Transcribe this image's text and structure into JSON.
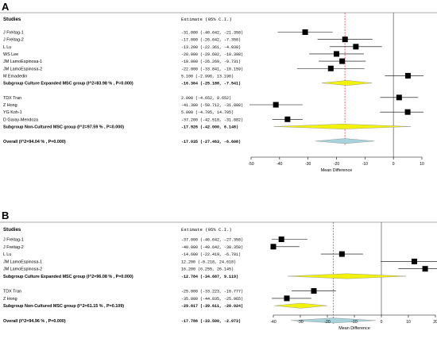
{
  "chart_data": [
    {
      "type": "forest",
      "panel_label": "A",
      "header": {
        "studies": "Studies",
        "estimate": "Estimate (95% C.I.)"
      },
      "xlabel": "Mean Difference",
      "xlim": [
        -50,
        10
      ],
      "ticks": [
        "-50",
        "-40",
        "-30",
        "-20",
        "-10",
        "0",
        "10"
      ],
      "tick_values": [
        -50,
        -40,
        -30,
        -20,
        -10,
        0,
        10
      ],
      "reference_line": -17.035,
      "rows": [
        {
          "kind": "study",
          "label": "J Freitag-1",
          "est": -31.0,
          "lo": -40.642,
          "hi": -21.358,
          "text": "-31.000 (-40.642, -21.358)"
        },
        {
          "kind": "study",
          "label": "J Freitag-2",
          "est": -17.0,
          "lo": -26.642,
          "hi": -7.358,
          "text": "-17.000 (-26.642, -7.358)"
        },
        {
          "kind": "study",
          "label": "L Lu",
          "est": -13.2,
          "lo": -22.361,
          "hi": -4.039,
          "text": "-13.200 (-22.361, -4.039)"
        },
        {
          "kind": "study",
          "label": "WS Lee",
          "est": -20.0,
          "lo": -29.602,
          "hi": -10.398,
          "text": "-20.000 (-29.602, -10.398)"
        },
        {
          "kind": "study",
          "label": "JM LamoEspinosa-1",
          "est": -18.0,
          "lo": -26.269,
          "hi": -9.731,
          "text": "-18.000 (-26.269, -9.731)"
        },
        {
          "kind": "study",
          "label": "JM LamoEspinosa-2",
          "est": -22.0,
          "lo": -33.841,
          "hi": -10.159,
          "text": "-22.000 (-33.841, -10.159)"
        },
        {
          "kind": "study",
          "label": "M Emadedin",
          "est": 5.1,
          "lo": -2.996,
          "hi": 13.196,
          "text": "5.100 (-2.996, 13.196)"
        },
        {
          "kind": "subgroup",
          "label": "Subgroup Culture Expanded MSC group (I^2=83.98 % , P=0.000)",
          "est": -16.364,
          "lo": -25.188,
          "hi": -7.541,
          "text": "-16.364 (-25.188, -7.541)"
        },
        {
          "kind": "gap"
        },
        {
          "kind": "study",
          "label": "TDX Tran",
          "est": 2.0,
          "lo": -4.652,
          "hi": 8.652,
          "text": "2.000 (-4.652, 8.652)"
        },
        {
          "kind": "study",
          "label": "Z Hong",
          "est": -41.3,
          "lo": -50.712,
          "hi": -31.888,
          "text": "-41.300 (-50.712, -31.888)"
        },
        {
          "kind": "study",
          "label": "YG Koh-1",
          "est": 5.0,
          "lo": -4.705,
          "hi": 14.705,
          "text": "5.000 (-4.705, 14.705)"
        },
        {
          "kind": "study",
          "label": "D Garay-Mendoza",
          "est": -37.2,
          "lo": -42.518,
          "hi": -31.882,
          "text": "-37.200 (-42.518, -31.882)"
        },
        {
          "kind": "subgroup",
          "label": "Subgroup Non-Cultured MSC group (I^2=97.59 % , P=0.000)",
          "est": -17.926,
          "lo": -42.0,
          "hi": 6.148,
          "text": "-17.926 (-42.000, 6.148)"
        },
        {
          "kind": "gap"
        },
        {
          "kind": "overall",
          "label": "Overall (I^2=94.04 % , P=0.000)",
          "est": -17.035,
          "lo": -27.463,
          "hi": -6.608,
          "text": "-17.035 (-27.463, -6.608)"
        }
      ]
    },
    {
      "type": "forest",
      "panel_label": "B",
      "header": {
        "studies": "Studies",
        "estimate": "Estimate (95% C.I.)"
      },
      "xlabel": "Mean Difference",
      "xlim": [
        -40,
        20
      ],
      "ticks": [
        "-40",
        "-30",
        "-20",
        "-10",
        "0",
        "10",
        "20"
      ],
      "tick_values": [
        -40,
        -30,
        -20,
        -10,
        0,
        10,
        20
      ],
      "reference_line": -17.786,
      "rows": [
        {
          "kind": "study",
          "label": "J Freitag-1",
          "est": -37.0,
          "lo": -46.642,
          "hi": -27.358,
          "text": "-37.000 (-46.642, -27.358)"
        },
        {
          "kind": "study",
          "label": "J Freitag-2",
          "est": -40.0,
          "lo": -49.642,
          "hi": -30.358,
          "text": "-40.000 (-49.642, -30.358)"
        },
        {
          "kind": "study",
          "label": "L Lu",
          "est": -14.6,
          "lo": -22.419,
          "hi": -6.781,
          "text": "-14.600 (-22.419, -6.781)"
        },
        {
          "kind": "study",
          "label": "JM LamoEspinosa-1",
          "est": 12.2,
          "lo": -0.218,
          "hi": 24.618,
          "text": "12.200 (-0.218, 24.618)"
        },
        {
          "kind": "study",
          "label": "JM LamoEspinosa-2",
          "est": 16.2,
          "lo": 6.255,
          "hi": 26.145,
          "text": "16.200 (6.255, 26.145)"
        },
        {
          "kind": "subgroup",
          "label": "Subgroup Culture Expanded MSC group (I^2=96.08 % , P=0.000)",
          "est": -12.784,
          "lo": -34.687,
          "hi": 9.119,
          "text": "-12.784 (-34.687, 9.119)"
        },
        {
          "kind": "gap"
        },
        {
          "kind": "study",
          "label": "TDX Tran",
          "est": -25.0,
          "lo": -33.223,
          "hi": -16.777,
          "text": "-25.000 (-33.223, -16.777)"
        },
        {
          "kind": "study",
          "label": "Z Hong",
          "est": -35.0,
          "lo": -44.035,
          "hi": -25.965,
          "text": "-35.000 (-44.035, -25.965)"
        },
        {
          "kind": "subgroup",
          "label": "Subgroup Non-Cultured MSC group (I^2=61.15 % , P=0.109)",
          "est": -29.817,
          "lo": -39.611,
          "hi": -20.024,
          "text": "-29.817 (-39.611, -20.024)"
        },
        {
          "kind": "gap"
        },
        {
          "kind": "overall",
          "label": "Overall (I^2=94.96 % , P=0.000)",
          "est": -17.786,
          "lo": -33.5,
          "hi": -2.073,
          "text": "-17.786 (-33.500, -2.073)"
        }
      ]
    }
  ],
  "colors": {
    "subgroup_diamond": "#f2f20c",
    "overall_diamond": "#a9d3dc",
    "reference_line": "#e8272a",
    "square": "#000000"
  }
}
